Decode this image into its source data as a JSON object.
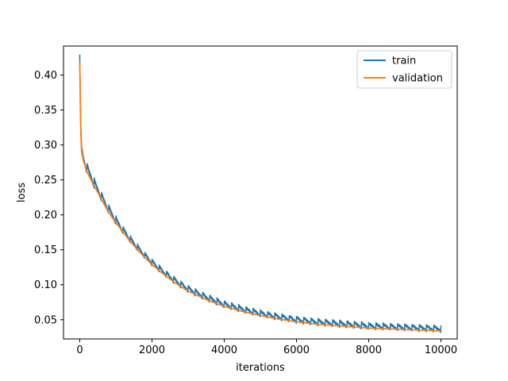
{
  "chart_data": {
    "type": "line",
    "title": "",
    "xlabel": "iterations",
    "ylabel": "loss",
    "xlim": [
      -450,
      10450
    ],
    "ylim": [
      0.0225,
      0.4415
    ],
    "xticks": [
      0,
      2000,
      4000,
      6000,
      8000,
      10000
    ],
    "yticks": [
      0.05,
      0.1,
      0.15,
      0.2,
      0.25,
      0.3,
      0.35,
      0.4
    ],
    "xtick_labels": [
      "0",
      "2000",
      "4000",
      "6000",
      "8000",
      "10000"
    ],
    "ytick_labels": [
      "0.05",
      "0.10",
      "0.15",
      "0.20",
      "0.25",
      "0.30",
      "0.35",
      "0.40"
    ],
    "grid": false,
    "legend_position": "top-right",
    "series": [
      {
        "name": "train",
        "color": "#1f77b4",
        "x": [
          0,
          25,
          50,
          100,
          200,
          300,
          400,
          500,
          600,
          700,
          800,
          900,
          1000,
          1200,
          1400,
          1600,
          1800,
          2000,
          2250,
          2500,
          2750,
          3000,
          3250,
          3500,
          3750,
          4000,
          4500,
          5000,
          5500,
          6000,
          6500,
          7000,
          7500,
          8000,
          8500,
          9000,
          9500,
          10000
        ],
        "y": [
          0.423,
          0.327,
          0.295,
          0.281,
          0.266,
          0.256,
          0.245,
          0.236,
          0.226,
          0.217,
          0.208,
          0.2,
          0.192,
          0.178,
          0.165,
          0.153,
          0.142,
          0.132,
          0.121,
          0.111,
          0.102,
          0.094,
          0.088,
          0.082,
          0.077,
          0.072,
          0.065,
          0.059,
          0.054,
          0.05,
          0.047,
          0.045,
          0.043,
          0.041,
          0.04,
          0.039,
          0.038,
          0.037
        ],
        "oscillation_amplitude": 0.004
      },
      {
        "name": "validation",
        "color": "#ff7f0e",
        "x": [
          0,
          25,
          50,
          100,
          200,
          300,
          400,
          500,
          600,
          700,
          800,
          900,
          1000,
          1200,
          1400,
          1600,
          1800,
          2000,
          2250,
          2500,
          2750,
          3000,
          3250,
          3500,
          3750,
          4000,
          4500,
          5000,
          5500,
          6000,
          6500,
          7000,
          7500,
          8000,
          8500,
          9000,
          9500,
          10000
        ],
        "y": [
          0.418,
          0.322,
          0.291,
          0.277,
          0.262,
          0.251,
          0.241,
          0.232,
          0.222,
          0.213,
          0.204,
          0.196,
          0.189,
          0.175,
          0.162,
          0.15,
          0.139,
          0.129,
          0.118,
          0.108,
          0.099,
          0.091,
          0.085,
          0.079,
          0.074,
          0.069,
          0.062,
          0.056,
          0.051,
          0.047,
          0.044,
          0.042,
          0.04,
          0.038,
          0.037,
          0.036,
          0.035,
          0.034
        ]
      }
    ]
  }
}
